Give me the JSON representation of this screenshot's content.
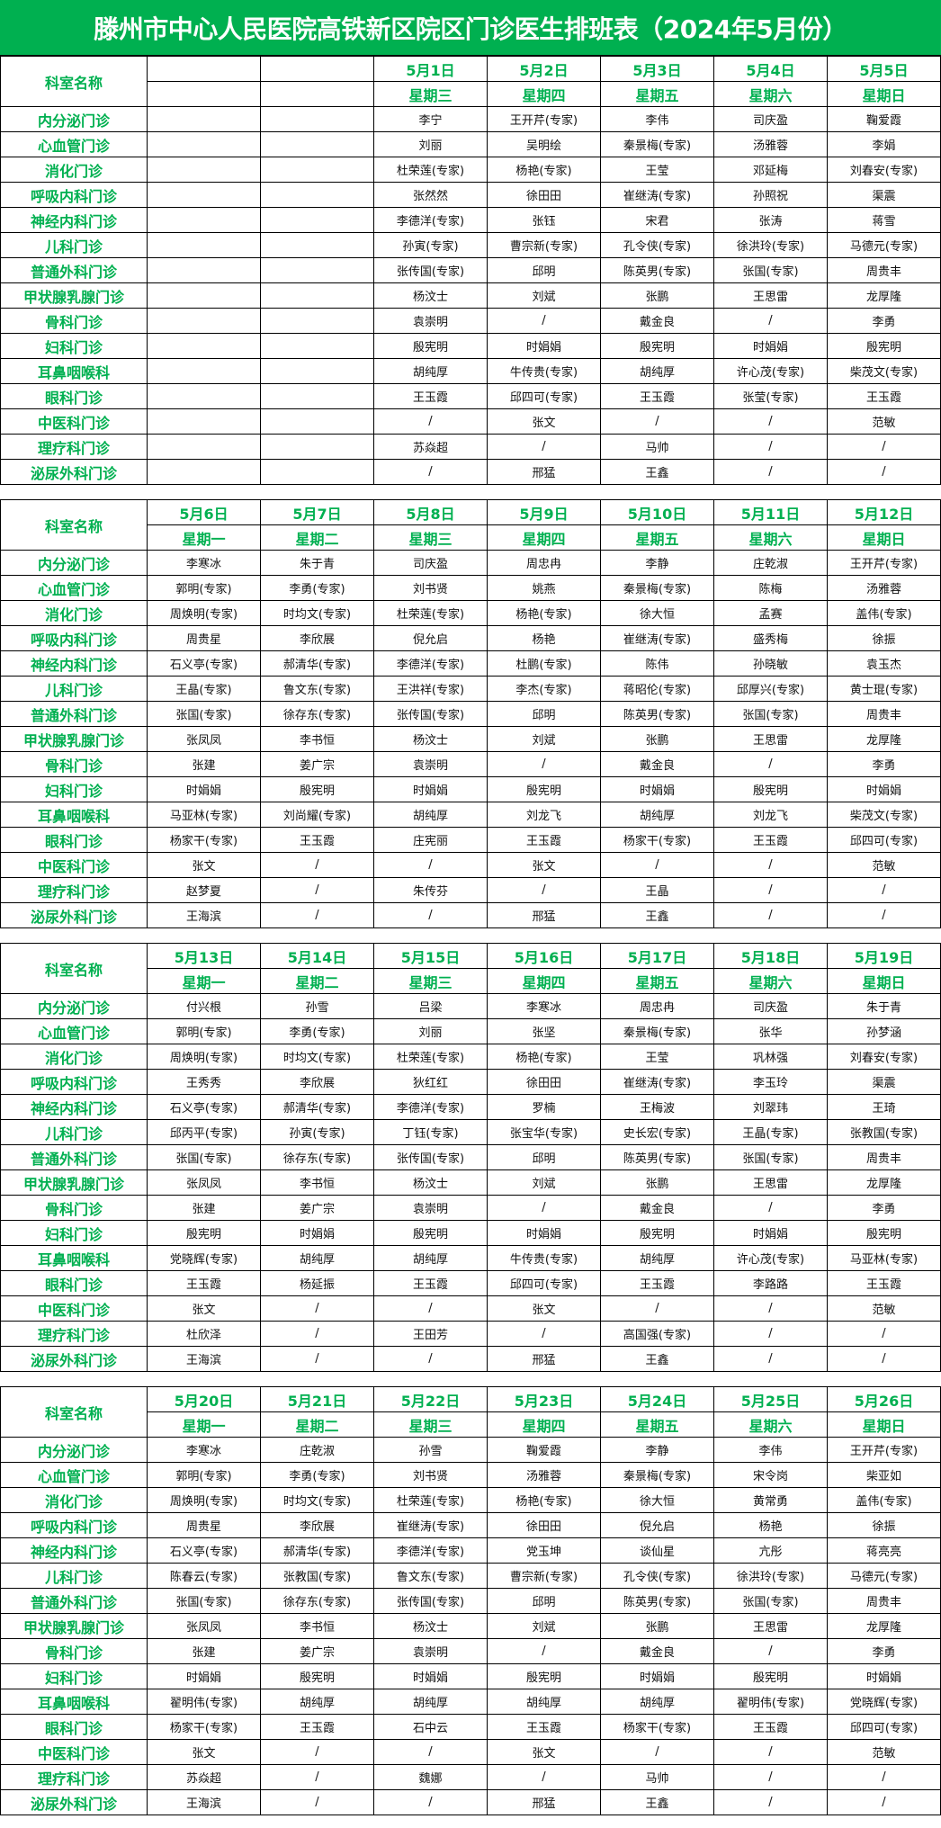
{
  "title": "滕州市中心人民医院高铁新区院区门诊医生排班表（2024年5月份）",
  "colors": {
    "accent": "#00b050",
    "text": "#111111"
  },
  "dept_header": "科室名称",
  "departments": [
    "内分泌门诊",
    "心血管门诊",
    "消化门诊",
    "呼吸内科门诊",
    "神经内科门诊",
    "儿科门诊",
    "普通外科门诊",
    "甲状腺乳腺门诊",
    "骨科门诊",
    "妇科门诊",
    "耳鼻咽喉科",
    "眼科门诊",
    "中医科门诊",
    "理疗科门诊",
    "泌尿外科门诊"
  ],
  "blocks": [
    {
      "dates": [
        "",
        "",
        "5月1日",
        "5月2日",
        "5月3日",
        "5月4日",
        "5月5日"
      ],
      "weekdays": [
        "",
        "",
        "星期三",
        "星期四",
        "星期五",
        "星期六",
        "星期日"
      ],
      "rows": [
        [
          "",
          "",
          "李宁",
          "王开芹(专家)",
          "李伟",
          "司庆盈",
          "鞠爱霞"
        ],
        [
          "",
          "",
          "刘丽",
          "吴明绘",
          "秦景梅(专家)",
          "汤雅蓉",
          "李娟"
        ],
        [
          "",
          "",
          "杜荣莲(专家)",
          "杨艳(专家)",
          "王莹",
          "邓延梅",
          "刘春安(专家)"
        ],
        [
          "",
          "",
          "张然然",
          "徐田田",
          "崔继涛(专家)",
          "孙照祝",
          "渠震"
        ],
        [
          "",
          "",
          "李德洋(专家)",
          "张钰",
          "宋君",
          "张涛",
          "蒋雪"
        ],
        [
          "",
          "",
          "孙寅(专家)",
          "曹宗新(专家)",
          "孔令侠(专家)",
          "徐洪玲(专家)",
          "马德元(专家)"
        ],
        [
          "",
          "",
          "张传国(专家)",
          "邱明",
          "陈英男(专家)",
          "张国(专家)",
          "周贵丰"
        ],
        [
          "",
          "",
          "杨汶士",
          "刘斌",
          "张鹏",
          "王思雷",
          "龙厚隆"
        ],
        [
          "",
          "",
          "袁崇明",
          "/",
          "戴金良",
          "/",
          "李勇"
        ],
        [
          "",
          "",
          "殷宪明",
          "时娟娟",
          "殷宪明",
          "时娟娟",
          "殷宪明"
        ],
        [
          "",
          "",
          "胡纯厚",
          "牛传贵(专家)",
          "胡纯厚",
          "许心茂(专家)",
          "柴茂文(专家)"
        ],
        [
          "",
          "",
          "王玉霞",
          "邱四可(专家)",
          "王玉霞",
          "张莹(专家)",
          "王玉霞"
        ],
        [
          "",
          "",
          "/",
          "张文",
          "/",
          "/",
          "范敏"
        ],
        [
          "",
          "",
          "苏焱超",
          "/",
          "马帅",
          "/",
          "/"
        ],
        [
          "",
          "",
          "/",
          "邢猛",
          "王鑫",
          "/",
          "/"
        ]
      ]
    },
    {
      "dates": [
        "5月6日",
        "5月7日",
        "5月8日",
        "5月9日",
        "5月10日",
        "5月11日",
        "5月12日"
      ],
      "weekdays": [
        "星期一",
        "星期二",
        "星期三",
        "星期四",
        "星期五",
        "星期六",
        "星期日"
      ],
      "rows": [
        [
          "李寒冰",
          "朱于青",
          "司庆盈",
          "周忠冉",
          "李静",
          "庄乾淑",
          "王开芹(专家)"
        ],
        [
          "郭明(专家)",
          "李勇(专家)",
          "刘书贤",
          "姚燕",
          "秦景梅(专家)",
          "陈梅",
          "汤雅蓉"
        ],
        [
          "周焕明(专家)",
          "时均文(专家)",
          "杜荣莲(专家)",
          "杨艳(专家)",
          "徐大恒",
          "孟赛",
          "盖伟(专家)"
        ],
        [
          "周贵星",
          "李欣展",
          "倪允启",
          "杨艳",
          "崔继涛(专家)",
          "盛秀梅",
          "徐振"
        ],
        [
          "石义亭(专家)",
          "郝清华(专家)",
          "李德洋(专家)",
          "杜鹏(专家)",
          "陈伟",
          "孙晓敏",
          "袁玉杰"
        ],
        [
          "王晶(专家)",
          "鲁文东(专家)",
          "王洪祥(专家)",
          "李杰(专家)",
          "蒋昭伦(专家)",
          "邱厚兴(专家)",
          "黄士琨(专家)"
        ],
        [
          "张国(专家)",
          "徐存东(专家)",
          "张传国(专家)",
          "邱明",
          "陈英男(专家)",
          "张国(专家)",
          "周贵丰"
        ],
        [
          "张凤凤",
          "李书恒",
          "杨汶士",
          "刘斌",
          "张鹏",
          "王思雷",
          "龙厚隆"
        ],
        [
          "张建",
          "姜广宗",
          "袁崇明",
          "/",
          "戴金良",
          "/",
          "李勇"
        ],
        [
          "时娟娟",
          "殷宪明",
          "时娟娟",
          "殷宪明",
          "时娟娟",
          "殷宪明",
          "时娟娟"
        ],
        [
          "马亚林(专家)",
          "刘尚耀(专家)",
          "胡纯厚",
          "刘龙飞",
          "胡纯厚",
          "刘龙飞",
          "柴茂文(专家)"
        ],
        [
          "杨家干(专家)",
          "王玉霞",
          "庄宪丽",
          "王玉霞",
          "杨家干(专家)",
          "王玉霞",
          "邱四可(专家)"
        ],
        [
          "张文",
          "/",
          "/",
          "张文",
          "/",
          "/",
          "范敏"
        ],
        [
          "赵梦夏",
          "/",
          "朱传芬",
          "/",
          "王晶",
          "/",
          "/"
        ],
        [
          "王海滨",
          "/",
          "/",
          "邢猛",
          "王鑫",
          "/",
          "/"
        ]
      ]
    },
    {
      "dates": [
        "5月13日",
        "5月14日",
        "5月15日",
        "5月16日",
        "5月17日",
        "5月18日",
        "5月19日"
      ],
      "weekdays": [
        "星期一",
        "星期二",
        "星期三",
        "星期四",
        "星期五",
        "星期六",
        "星期日"
      ],
      "rows": [
        [
          "付兴根",
          "孙雪",
          "吕梁",
          "李寒冰",
          "周忠冉",
          "司庆盈",
          "朱于青"
        ],
        [
          "郭明(专家)",
          "李勇(专家)",
          "刘丽",
          "张坚",
          "秦景梅(专家)",
          "张华",
          "孙梦涵"
        ],
        [
          "周焕明(专家)",
          "时均文(专家)",
          "杜荣莲(专家)",
          "杨艳(专家)",
          "王莹",
          "巩林强",
          "刘春安(专家)"
        ],
        [
          "王秀秀",
          "李欣展",
          "狄红红",
          "徐田田",
          "崔继涛(专家)",
          "李玉玲",
          "渠震"
        ],
        [
          "石义亭(专家)",
          "郝清华(专家)",
          "李德洋(专家)",
          "罗楠",
          "王梅波",
          "刘翠玮",
          "王琦"
        ],
        [
          "邱丙平(专家)",
          "孙寅(专家)",
          "丁钰(专家)",
          "张宝华(专家)",
          "史长宏(专家)",
          "王晶(专家)",
          "张教国(专家)"
        ],
        [
          "张国(专家)",
          "徐存东(专家)",
          "张传国(专家)",
          "邱明",
          "陈英男(专家)",
          "张国(专家)",
          "周贵丰"
        ],
        [
          "张凤凤",
          "李书恒",
          "杨汶士",
          "刘斌",
          "张鹏",
          "王思雷",
          "龙厚隆"
        ],
        [
          "张建",
          "姜广宗",
          "袁崇明",
          "/",
          "戴金良",
          "/",
          "李勇"
        ],
        [
          "殷宪明",
          "时娟娟",
          "殷宪明",
          "时娟娟",
          "殷宪明",
          "时娟娟",
          "殷宪明"
        ],
        [
          "党晓辉(专家)",
          "胡纯厚",
          "胡纯厚",
          "牛传贵(专家)",
          "胡纯厚",
          "许心茂(专家)",
          "马亚林(专家)"
        ],
        [
          "王玉霞",
          "杨延振",
          "王玉霞",
          "邱四可(专家)",
          "王玉霞",
          "李路路",
          "王玉霞"
        ],
        [
          "张文",
          "/",
          "/",
          "张文",
          "/",
          "/",
          "范敏"
        ],
        [
          "杜欣泽",
          "/",
          "王田芳",
          "/",
          "高国强(专家)",
          "/",
          "/"
        ],
        [
          "王海滨",
          "/",
          "/",
          "邢猛",
          "王鑫",
          "/",
          "/"
        ]
      ]
    },
    {
      "dates": [
        "5月20日",
        "5月21日",
        "5月22日",
        "5月23日",
        "5月24日",
        "5月25日",
        "5月26日"
      ],
      "weekdays": [
        "星期一",
        "星期二",
        "星期三",
        "星期四",
        "星期五",
        "星期六",
        "星期日"
      ],
      "rows": [
        [
          "李寒冰",
          "庄乾淑",
          "孙雪",
          "鞠爱霞",
          "李静",
          "李伟",
          "王开芹(专家)"
        ],
        [
          "郭明(专家)",
          "李勇(专家)",
          "刘书贤",
          "汤雅蓉",
          "秦景梅(专家)",
          "宋令岗",
          "柴亚如"
        ],
        [
          "周焕明(专家)",
          "时均文(专家)",
          "杜荣莲(专家)",
          "杨艳(专家)",
          "徐大恒",
          "黄常勇",
          "盖伟(专家)"
        ],
        [
          "周贵星",
          "李欣展",
          "崔继涛(专家)",
          "徐田田",
          "倪允启",
          "杨艳",
          "徐振"
        ],
        [
          "石义亭(专家)",
          "郝清华(专家)",
          "李德洋(专家)",
          "党玉坤",
          "谈仙星",
          "亢彤",
          "蒋亮亮"
        ],
        [
          "陈春云(专家)",
          "张教国(专家)",
          "鲁文东(专家)",
          "曹宗新(专家)",
          "孔令侠(专家)",
          "徐洪玲(专家)",
          "马德元(专家)"
        ],
        [
          "张国(专家)",
          "徐存东(专家)",
          "张传国(专家)",
          "邱明",
          "陈英男(专家)",
          "张国(专家)",
          "周贵丰"
        ],
        [
          "张凤凤",
          "李书恒",
          "杨汶士",
          "刘斌",
          "张鹏",
          "王思雷",
          "龙厚隆"
        ],
        [
          "张建",
          "姜广宗",
          "袁崇明",
          "/",
          "戴金良",
          "/",
          "李勇"
        ],
        [
          "时娟娟",
          "殷宪明",
          "时娟娟",
          "殷宪明",
          "时娟娟",
          "殷宪明",
          "时娟娟"
        ],
        [
          "翟明伟(专家)",
          "胡纯厚",
          "胡纯厚",
          "胡纯厚",
          "胡纯厚",
          "翟明伟(专家)",
          "党晓辉(专家)"
        ],
        [
          "杨家干(专家)",
          "王玉霞",
          "石中云",
          "王玉霞",
          "杨家干(专家)",
          "王玉霞",
          "邱四可(专家)"
        ],
        [
          "张文",
          "/",
          "/",
          "张文",
          "/",
          "/",
          "范敏"
        ],
        [
          "苏焱超",
          "/",
          "魏娜",
          "/",
          "马帅",
          "/",
          "/"
        ],
        [
          "王海滨",
          "/",
          "/",
          "邢猛",
          "王鑫",
          "/",
          "/"
        ]
      ]
    }
  ]
}
